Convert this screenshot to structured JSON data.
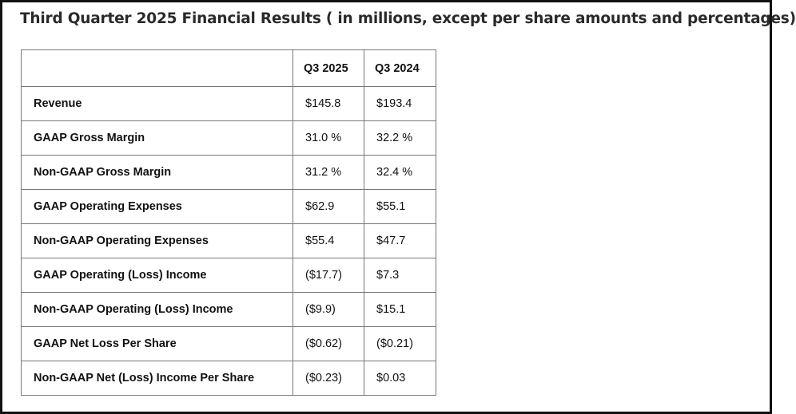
{
  "header": {
    "title": "Third Quarter 2025 Financial Results (  in millions, except per share amounts and percentages)"
  },
  "table": {
    "columns": [
      "Q3 2025",
      "Q3 2024"
    ],
    "rows": [
      [
        "Revenue",
        "$145.8",
        "$193.4"
      ],
      [
        "GAAP Gross Margin",
        "31.0 %",
        "32.2 %"
      ],
      [
        "Non-GAAP Gross Margin",
        "31.2 %",
        "32.4 %"
      ],
      [
        "GAAP Operating Expenses",
        "$62.9",
        "$55.1"
      ],
      [
        "Non-GAAP Operating Expenses",
        "$55.4",
        "$47.7"
      ],
      [
        "GAAP Operating (Loss) Income",
        "($17.7)",
        "$7.3"
      ],
      [
        "Non-GAAP Operating (Loss) Income",
        "($9.9)",
        "$15.1"
      ],
      [
        "GAAP Net Loss Per Share",
        "($0.62)",
        "($0.21)"
      ],
      [
        "Non-GAAP Net (Loss) Income Per Share",
        "($0.23)",
        "$0.03"
      ]
    ]
  }
}
